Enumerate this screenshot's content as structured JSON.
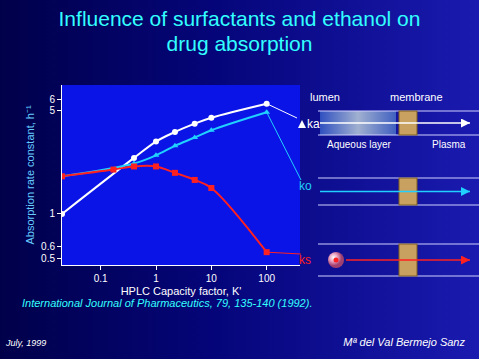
{
  "chart_data": {
    "type": "line",
    "title": "Influence of surfactants and ethanol on drug absorption",
    "x_label": "HPLC Capacity factor, K'",
    "y_label": "Absorption rate constant, h⁻¹",
    "log": true,
    "grid": false,
    "xlim": [
      0.02,
      400
    ],
    "ylim": [
      0.45,
      7.5
    ],
    "xticks": [
      0.1,
      1,
      10,
      100
    ],
    "yticks": [
      0.5,
      0.6,
      1,
      5,
      6
    ],
    "series": [
      {
        "name": "ka",
        "color": "#ffffff",
        "marker": "circle",
        "x": [
          0.02,
          0.4,
          1,
          2.2,
          5,
          10,
          100
        ],
        "values": [
          1,
          2.4,
          3.1,
          3.6,
          4.1,
          4.5,
          5.6
        ]
      },
      {
        "name": "ko",
        "color": "#20d0ff",
        "marker": "triangle-up",
        "x": [
          0.02,
          0.4,
          1,
          2.2,
          5,
          10,
          100
        ],
        "values": [
          1.8,
          2.2,
          2.5,
          2.9,
          3.3,
          3.7,
          4.9
        ]
      },
      {
        "name": "ks",
        "color": "#ff2020",
        "marker": "square",
        "x": [
          0.02,
          0.17,
          0.4,
          1,
          2.2,
          5,
          10,
          100
        ],
        "values": [
          1.8,
          2.0,
          2.1,
          2.1,
          1.9,
          1.7,
          1.5,
          0.55
        ]
      }
    ]
  },
  "diagram": {
    "lumen": "lumen",
    "membrane": "membrane",
    "aqueous_layer": "Aqueous layer",
    "plasma": "Plasma"
  },
  "citation": "International Journal of Pharmaceutics, 79, 135-140 (1992).",
  "footer": {
    "date": "July, 1999",
    "author": "Mª del Val Bermejo Sanz"
  }
}
